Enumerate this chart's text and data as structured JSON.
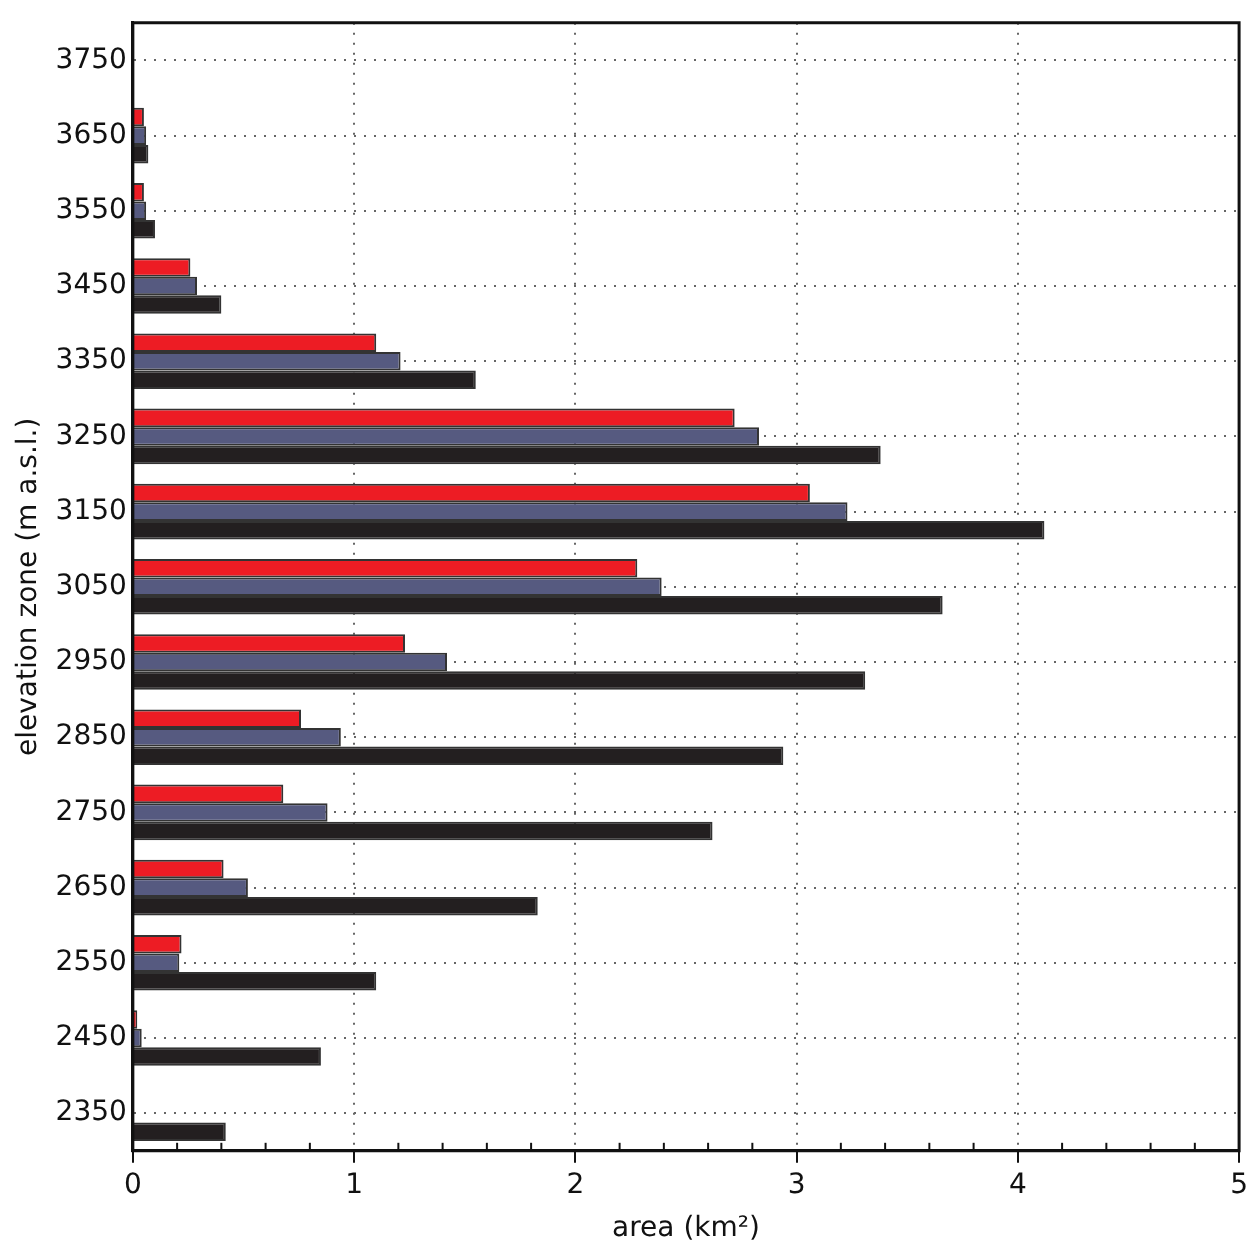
{
  "chart_data": {
    "type": "bar",
    "orientation": "horizontal",
    "xlabel": "area (km²)",
    "ylabel": "elevation zone (m a.s.l.)",
    "categories": [
      "3750",
      "3650",
      "3550",
      "3450",
      "3350",
      "3250",
      "3150",
      "3050",
      "2950",
      "2850",
      "2750",
      "2650",
      "2550",
      "2450",
      "2350"
    ],
    "series": [
      {
        "color": "#ed1c24",
        "values": [
          null,
          0.05,
          0.05,
          0.26,
          1.1,
          2.72,
          3.06,
          2.28,
          1.23,
          0.76,
          0.68,
          0.41,
          0.22,
          0.02,
          null
        ]
      },
      {
        "color": "#565a80",
        "values": [
          null,
          0.06,
          0.06,
          0.29,
          1.21,
          2.83,
          3.23,
          2.39,
          1.42,
          0.94,
          0.88,
          0.52,
          0.21,
          0.04,
          null
        ]
      },
      {
        "color": "#231f20",
        "values": [
          null,
          0.07,
          0.1,
          0.4,
          1.55,
          3.38,
          4.12,
          3.66,
          3.31,
          2.94,
          2.62,
          1.83,
          1.1,
          0.85,
          0.42
        ]
      }
    ],
    "xlim": [
      0,
      5
    ],
    "xticks": [
      0,
      1,
      2,
      3,
      4,
      5
    ],
    "grid": true,
    "legend": false
  }
}
